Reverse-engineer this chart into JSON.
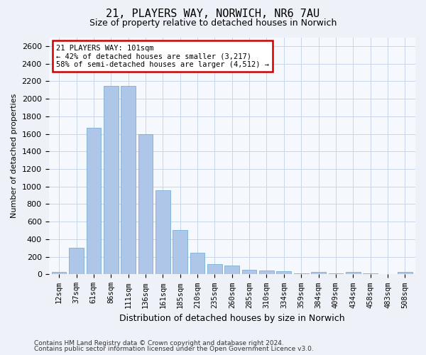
{
  "title1": "21, PLAYERS WAY, NORWICH, NR6 7AU",
  "title2": "Size of property relative to detached houses in Norwich",
  "xlabel": "Distribution of detached houses by size in Norwich",
  "ylabel": "Number of detached properties",
  "categories": [
    "12sqm",
    "37sqm",
    "61sqm",
    "86sqm",
    "111sqm",
    "136sqm",
    "161sqm",
    "185sqm",
    "210sqm",
    "235sqm",
    "260sqm",
    "285sqm",
    "310sqm",
    "334sqm",
    "359sqm",
    "384sqm",
    "409sqm",
    "434sqm",
    "458sqm",
    "483sqm",
    "508sqm"
  ],
  "values": [
    25,
    300,
    1670,
    2150,
    2150,
    1595,
    960,
    505,
    250,
    120,
    100,
    50,
    45,
    35,
    15,
    30,
    15,
    25,
    15,
    5,
    25
  ],
  "bar_color": "#aec6e8",
  "bar_edge_color": "#7aadd4",
  "annotation_line1": "21 PLAYERS WAY: 101sqm",
  "annotation_line2": "← 42% of detached houses are smaller (3,217)",
  "annotation_line3": "58% of semi-detached houses are larger (4,512) →",
  "annotation_box_color": "#ffffff",
  "annotation_box_edge_color": "#cc0000",
  "ylim": [
    0,
    2700
  ],
  "yticks": [
    0,
    200,
    400,
    600,
    800,
    1000,
    1200,
    1400,
    1600,
    1800,
    2000,
    2200,
    2400,
    2600
  ],
  "footer1": "Contains HM Land Registry data © Crown copyright and database right 2024.",
  "footer2": "Contains public sector information licensed under the Open Government Licence v3.0.",
  "bg_color": "#eef2f8",
  "plot_bg_color": "#f5f8fd",
  "grid_color": "#c8d4e8",
  "title1_fontsize": 11,
  "title2_fontsize": 9,
  "ylabel_fontsize": 8,
  "xlabel_fontsize": 9,
  "tick_fontsize": 8,
  "xtick_fontsize": 7.5,
  "footer_fontsize": 6.5
}
